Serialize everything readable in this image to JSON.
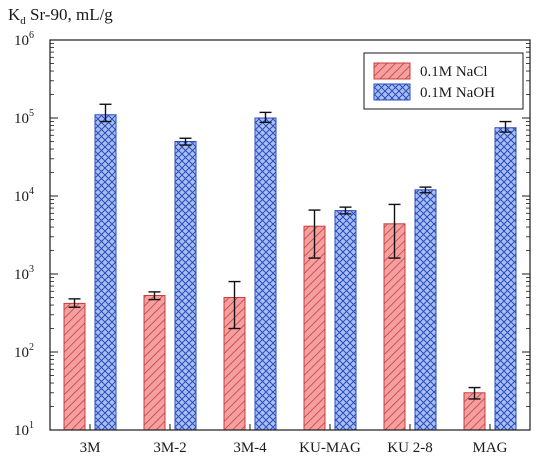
{
  "chart_data": {
    "type": "bar",
    "ylabel": {
      "main": "K",
      "sub": "d",
      "rest": " Sr-90, mL/g"
    },
    "yscale": "log",
    "ylim": [
      10,
      1000000
    ],
    "yticks": [
      {
        "value": 10,
        "base": "10",
        "exp": "1"
      },
      {
        "value": 100,
        "base": "10",
        "exp": "2"
      },
      {
        "value": 1000,
        "base": "10",
        "exp": "3"
      },
      {
        "value": 10000,
        "base": "10",
        "exp": "4"
      },
      {
        "value": 100000,
        "base": "10",
        "exp": "5"
      },
      {
        "value": 1000000,
        "base": "10",
        "exp": "6"
      }
    ],
    "categories": [
      "3M",
      "3M-2",
      "3M-4",
      "KU-MAG",
      "KU 2-8",
      "MAG"
    ],
    "series": [
      {
        "name": "0.1M NaCl",
        "pattern": "diagonal-hatch",
        "fill": "#f5a0a0",
        "stroke": "#c83c3c",
        "values": [
          420,
          530,
          500,
          4100,
          4400,
          30
        ],
        "error_low": [
          375,
          470,
          200,
          1600,
          1600,
          25
        ],
        "error_high": [
          480,
          590,
          800,
          6600,
          7800,
          35
        ]
      },
      {
        "name": "0.1M NaOH",
        "pattern": "crosshatch",
        "fill": "#a8bff0",
        "stroke": "#2a4cc0",
        "values": [
          110000,
          50000,
          100000,
          6500,
          12000,
          75000
        ],
        "error_low": [
          90000,
          45000,
          88000,
          5900,
          11000,
          66000
        ],
        "error_high": [
          150000,
          55000,
          118000,
          7200,
          13000,
          90000
        ]
      }
    ],
    "legend": {
      "position": "top-right"
    },
    "grid": false
  }
}
